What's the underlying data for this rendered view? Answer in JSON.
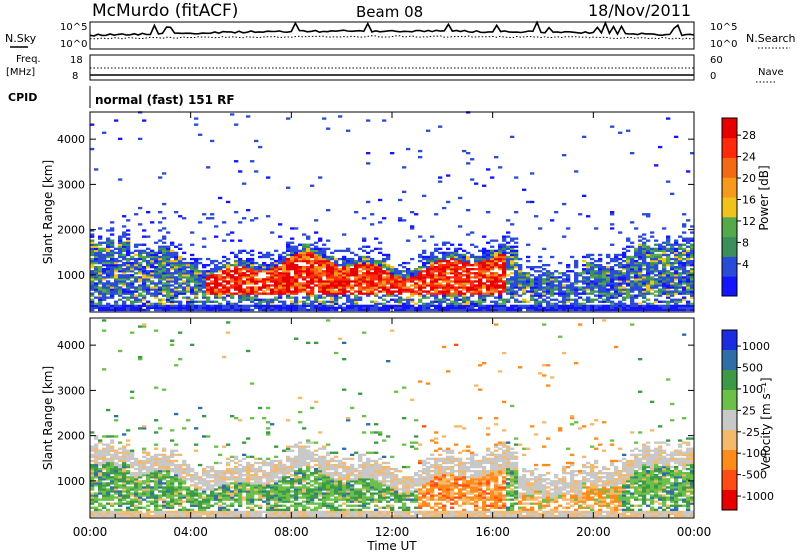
{
  "header": {
    "station": "McMurdo (fitACF)",
    "beam": "Beam 08",
    "date": "18/Nov/2011"
  },
  "strips": {
    "nsky_label": "N.Sky",
    "nsearch_label": "N.Search",
    "noise_ticks_left": [
      "10^5",
      "10^0"
    ],
    "noise_ticks_right": [
      "10^5",
      "10^0"
    ],
    "freq_label": "Freq.",
    "freq_unit": "[MHz]",
    "freq_ticks": [
      "18",
      "8"
    ],
    "nave_label": "Nave",
    "nave_ticks": [
      "60",
      "0"
    ],
    "cpid_label": "CPID",
    "cpid_text": "normal (fast) 151 RF"
  },
  "colors": {
    "power": [
      "#1414ff",
      "#2a4bd7",
      "#3a8f5a",
      "#55a84c",
      "#f2c21c",
      "#f59a1c",
      "#f26a14",
      "#ff2a0a",
      "#e60000"
    ],
    "velocity": [
      "#e60000",
      "#ff4b14",
      "#ff8c1a",
      "#f5b96e",
      "#c8c8c8",
      "#6cc04a",
      "#3c9a46",
      "#2e6ea8",
      "#1a2ee0"
    ]
  },
  "chart_data": [
    {
      "type": "heatmap",
      "panel": "power",
      "ylabel": "Slant Range [km]",
      "yticks": [
        1000,
        2000,
        3000,
        4000
      ],
      "ylim": [
        180,
        4600
      ],
      "xlim": [
        0,
        24
      ],
      "colorbar": {
        "label": "Power [dB]",
        "ticks": [
          "4",
          "8",
          "12",
          "16",
          "20",
          "24",
          "28"
        ],
        "range": [
          0,
          32
        ]
      }
    },
    {
      "type": "heatmap",
      "panel": "velocity",
      "ylabel": "Slant Range [km]",
      "yticks": [
        1000,
        2000,
        3000,
        4000
      ],
      "ylim": [
        180,
        4600
      ],
      "xlim": [
        0,
        24
      ],
      "colorbar": {
        "label": "Velocity [m s⁻¹]",
        "ticks": [
          "1000",
          "500",
          "100",
          "25",
          "-25",
          "-100",
          "-500",
          "-1000"
        ]
      }
    }
  ],
  "xaxis": {
    "xlabel": "Time UT",
    "ticks": [
      "00:00",
      "04:00",
      "08:00",
      "12:00",
      "16:00",
      "20:00",
      "00:00"
    ]
  }
}
